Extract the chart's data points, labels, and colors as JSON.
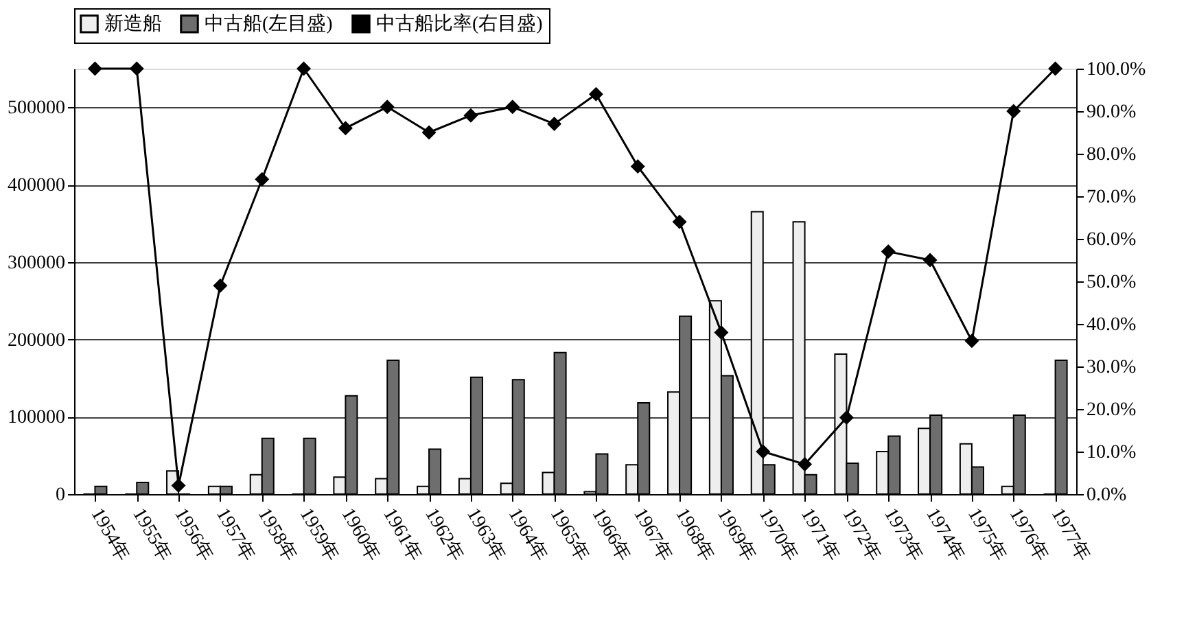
{
  "chart_data": {
    "type": "bar",
    "categories": [
      "1954年",
      "1955年",
      "1956年",
      "1957年",
      "1958年",
      "1959年",
      "1960年",
      "1961年",
      "1962年",
      "1963年",
      "1964年",
      "1965年",
      "1966年",
      "1967年",
      "1968年",
      "1969年",
      "1970年",
      "1971年",
      "1972年",
      "1973年",
      "1974年",
      "1975年",
      "1976年",
      "1977年"
    ],
    "series": [
      {
        "name": "新造船",
        "color": "#eeeeee",
        "values": [
          0,
          0,
          30000,
          10000,
          25000,
          0,
          22000,
          20000,
          10000,
          20000,
          14000,
          28000,
          3000,
          38000,
          132000,
          250000,
          365000,
          352000,
          181000,
          55000,
          85000,
          65000,
          10000,
          0
        ]
      },
      {
        "name": "中古船(左目盛)",
        "color": "#6e6e6e",
        "values": [
          10000,
          15000,
          0,
          10000,
          72000,
          72000,
          127000,
          173000,
          58000,
          151000,
          148000,
          183000,
          52000,
          118000,
          230000,
          153000,
          38000,
          25000,
          40000,
          75000,
          102000,
          35000,
          102000,
          173000
        ]
      },
      {
        "name": "中古船比率(右目盛)",
        "type": "line",
        "axis": "y2",
        "color": "#000000",
        "marker": "diamond",
        "values": [
          100,
          100,
          2,
          49,
          74,
          100,
          86,
          91,
          85,
          89,
          91,
          87,
          94,
          77,
          64,
          38,
          10,
          7,
          18,
          57,
          55,
          36,
          90,
          100
        ]
      }
    ],
    "ylim": [
      0,
      550000
    ],
    "yticks": [
      0,
      100000,
      200000,
      300000,
      400000,
      500000
    ],
    "y2lim": [
      0,
      100
    ],
    "y2ticks": [
      {
        "value": 0,
        "label": "0.0%"
      },
      {
        "value": 10,
        "label": "10.0%"
      },
      {
        "value": 20,
        "label": "20.0%"
      },
      {
        "value": 30,
        "label": "30.0%"
      },
      {
        "value": 40,
        "label": "40.0%"
      },
      {
        "value": 50,
        "label": "50.0%"
      },
      {
        "value": 60,
        "label": "60.0%"
      },
      {
        "value": 70,
        "label": "70.0%"
      },
      {
        "value": 80,
        "label": "80.0%"
      },
      {
        "value": 90,
        "label": "90.0%"
      },
      {
        "value": 100,
        "label": "100.0%"
      }
    ],
    "grid": "y",
    "legend": "top"
  }
}
